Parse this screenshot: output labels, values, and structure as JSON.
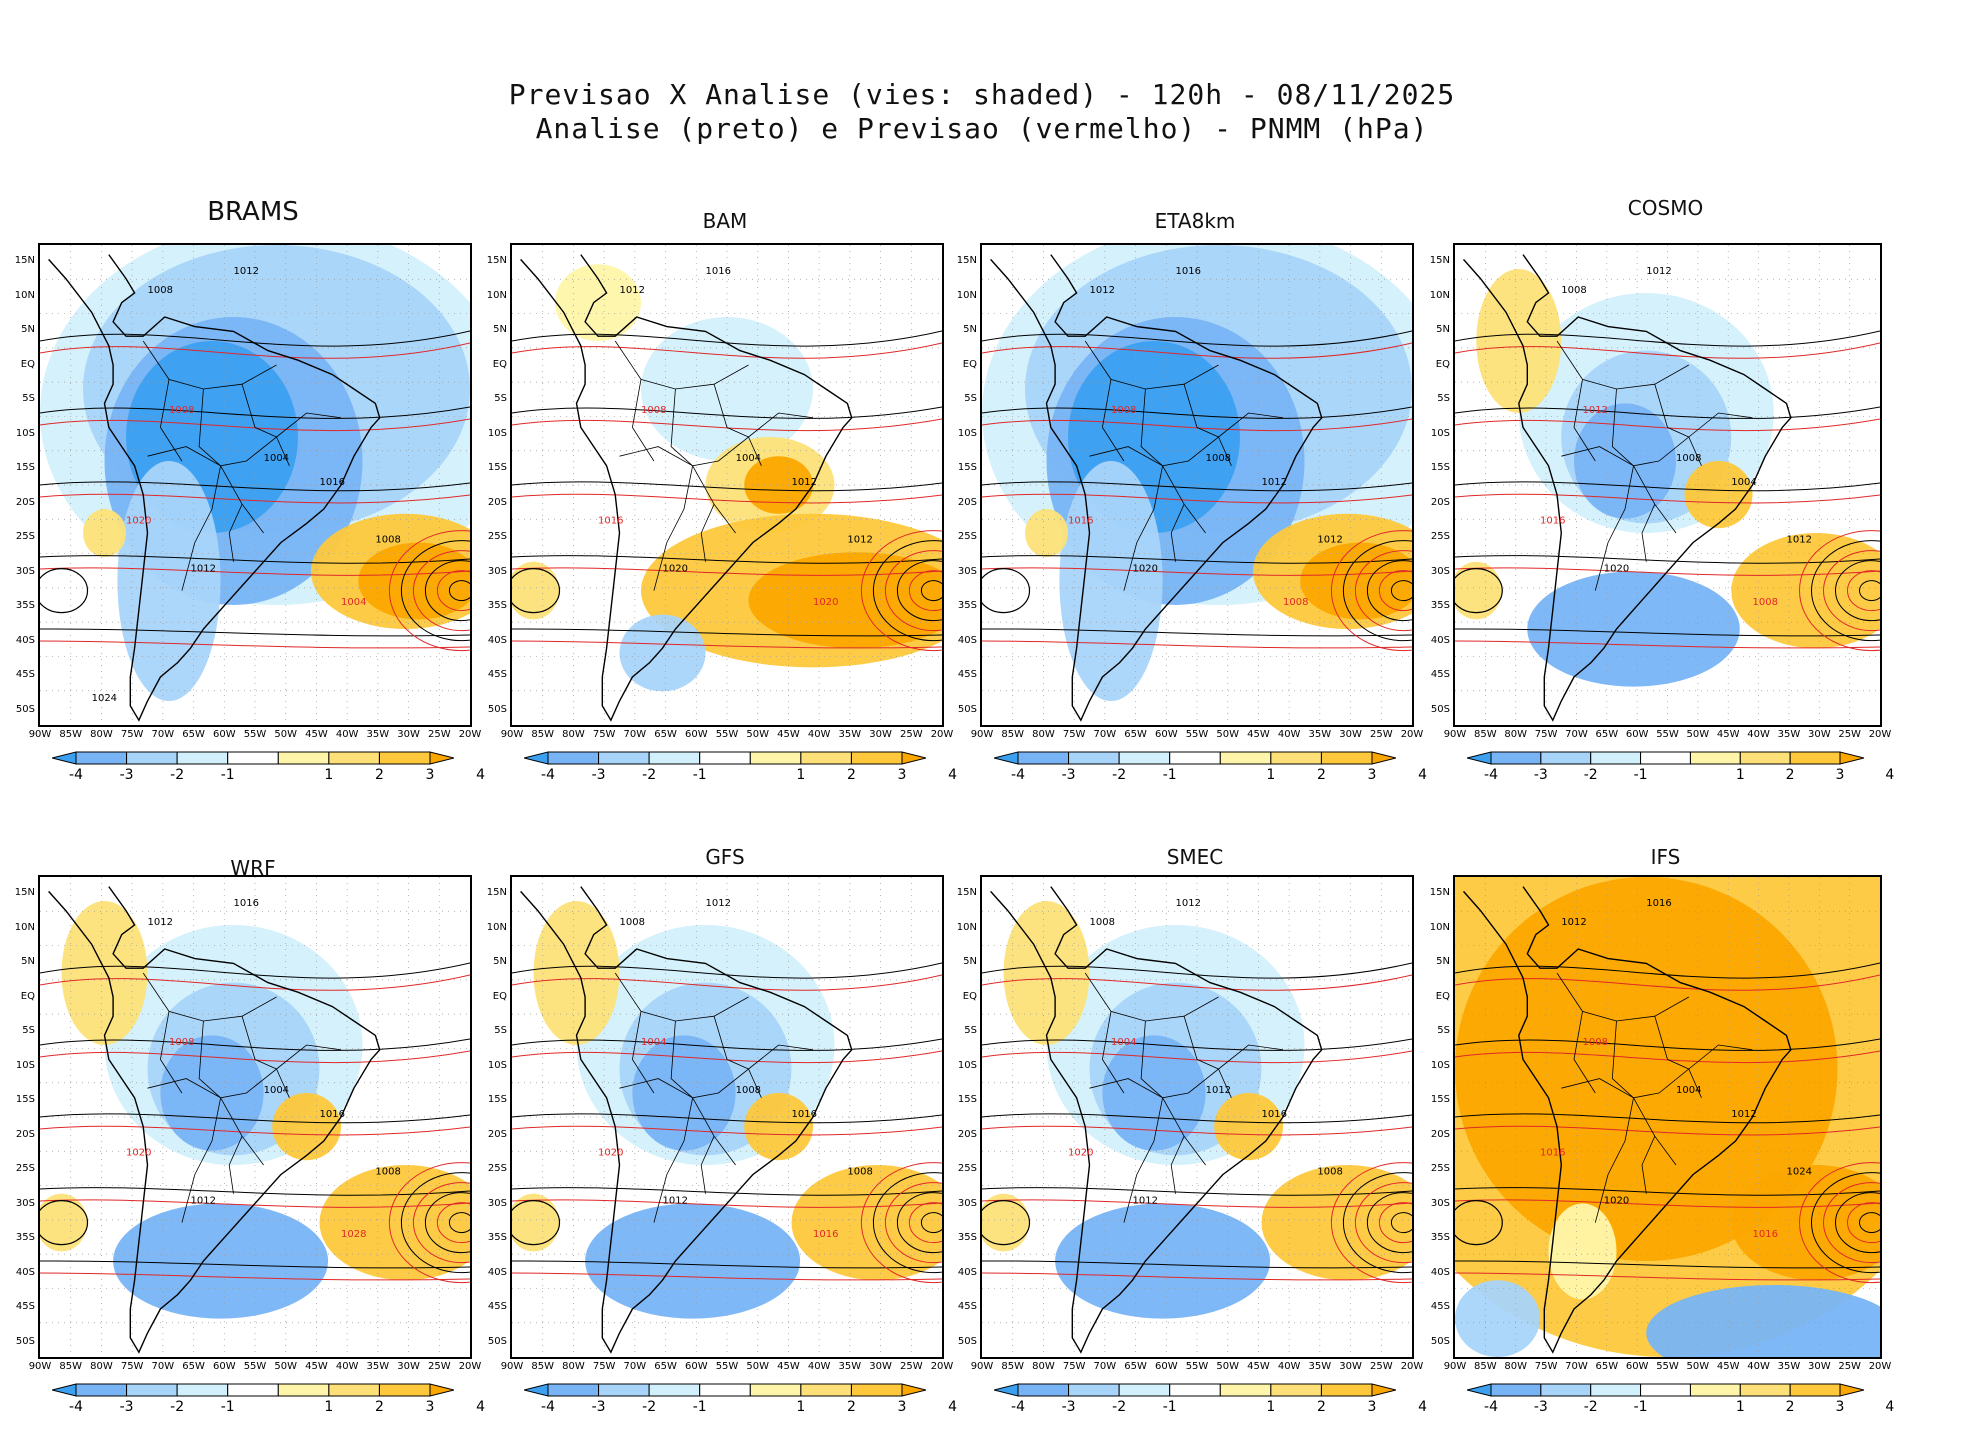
{
  "header": {
    "line1": "Previsao X Analise (vies: shaded) - 120h - 08/11/2025",
    "line2": "Analise (preto) e Previsao (vermelho) - PNMM (hPa)"
  },
  "colors": {
    "neg4": "#3ca0f0",
    "neg3": "#78b4f5",
    "neg2": "#a8d4fa",
    "neg1": "#d2f0fc",
    "neutral": "#ffffff",
    "pos1": "#fff5aa",
    "pos2": "#fde178",
    "pos3": "#fdc83c",
    "pos4": "#fca600",
    "analysis_contour": "#000000",
    "forecast_contour": "#e02828"
  },
  "colorbar_labels": [
    "-4",
    "-3",
    "-2",
    "-1",
    "1",
    "2",
    "3",
    "4"
  ],
  "lat_labels": [
    "15N",
    "10N",
    "5N",
    "EQ",
    "5S",
    "10S",
    "15S",
    "20S",
    "25S",
    "30S",
    "35S",
    "40S",
    "45S",
    "50S"
  ],
  "lon_labels": [
    "90W",
    "85W",
    "80W",
    "75W",
    "70W",
    "65W",
    "60W",
    "55W",
    "50W",
    "45W",
    "40W",
    "35W",
    "30W",
    "25W",
    "20W"
  ],
  "panels": [
    {
      "name": "BRAMS",
      "bias": "negative",
      "labels": [
        "1012",
        "1008",
        "1008",
        "1004",
        "1016",
        "1020",
        "1012",
        "1008",
        "1004",
        "1024"
      ]
    },
    {
      "name": "BAM",
      "bias": "mixed-positive",
      "labels": [
        "1016",
        "1012",
        "1008",
        "1004",
        "1012",
        "1016",
        "1020",
        "1012",
        "1020"
      ]
    },
    {
      "name": "ETA8km",
      "bias": "negative",
      "labels": [
        "1016",
        "1012",
        "1008",
        "1008",
        "1012",
        "1016",
        "1020",
        "1012",
        "1008"
      ]
    },
    {
      "name": "COSMO",
      "bias": "mixed",
      "labels": [
        "1012",
        "1008",
        "1012",
        "1008",
        "1004",
        "1016",
        "1020",
        "1012",
        "1008"
      ]
    },
    {
      "name": "WRF",
      "bias": "mixed",
      "labels": [
        "1016",
        "1012",
        "1008",
        "1004",
        "1016",
        "1020",
        "1012",
        "1008",
        "1028"
      ]
    },
    {
      "name": "GFS",
      "bias": "mixed",
      "labels": [
        "1012",
        "1008",
        "1004",
        "1008",
        "1016",
        "1020",
        "1012",
        "1008",
        "1016"
      ]
    },
    {
      "name": "SMEC",
      "bias": "mixed",
      "labels": [
        "1012",
        "1008",
        "1004",
        "1012",
        "1016",
        "1020",
        "1012",
        "1008"
      ]
    },
    {
      "name": "IFS",
      "bias": "positive",
      "labels": [
        "1016",
        "1012",
        "1008",
        "1004",
        "1012",
        "1016",
        "1020",
        "1024",
        "1016"
      ]
    }
  ]
}
